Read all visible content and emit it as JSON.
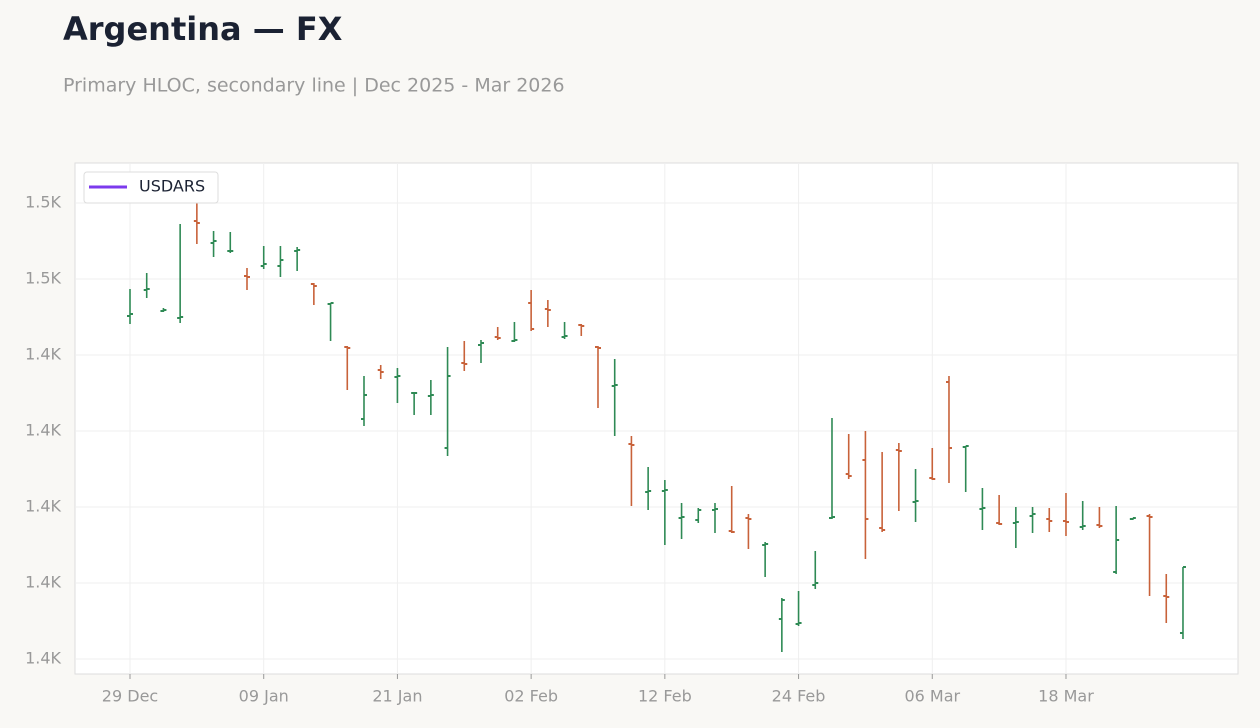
{
  "chart_data": {
    "type": "ohlc",
    "title": "Argentina — FX",
    "subtitle": "Primary HLOC, secondary line | Dec 2025 - Mar 2026",
    "categories": [
      "29 Dec",
      null,
      null,
      null,
      null,
      null,
      null,
      null,
      "09 Jan",
      null,
      null,
      null,
      null,
      null,
      null,
      null,
      "21 Jan",
      null,
      null,
      null,
      null,
      null,
      null,
      null,
      "02 Feb",
      null,
      null,
      null,
      null,
      null,
      null,
      null,
      "12 Feb",
      null,
      null,
      null,
      null,
      null,
      null,
      null,
      "24 Feb",
      null,
      null,
      null,
      null,
      null,
      null,
      null,
      "06 Mar",
      null,
      null,
      null,
      null,
      null,
      null,
      null,
      "18 Mar",
      null,
      null,
      null,
      null,
      null,
      null,
      null
    ],
    "open": [
      1451.45,
      1455.35,
      1452.2,
      1451.15,
      1465.7,
      1462.4,
      1461.2,
      1457.45,
      1458.95,
      1458.95,
      1461.2,
      1456.25,
      1453.25,
      1446.8,
      1436,
      1443.35,
      1442.3,
      1439.9,
      1439.45,
      1431.65,
      1444.4,
      1447.1,
      1448.3,
      1447.7,
      1453.4,
      1452.5,
      1448.3,
      1450.1,
      1446.8,
      1440.95,
      1432.25,
      1425.05,
      1425.2,
      1421.15,
      1420.85,
      1422.35,
      1419.2,
      1421.15,
      1417.1,
      1406,
      1405.25,
      1411.1,
      1421.15,
      1427.75,
      1429.85,
      1419.65,
      1431.35,
      1423.55,
      1427.15,
      1441.55,
      1431.8,
      1422.5,
      1420.4,
      1420.4,
      1421.45,
      1421,
      1420.7,
      1419.8,
      1420.1,
      1413.05,
      1421,
      1421.45,
      1409.45,
      1403.9
    ],
    "high": [
      1455.5,
      1457.9,
      1452.65,
      1465.25,
      1469.6,
      1464.2,
      1464.05,
      1458.65,
      1461.95,
      1461.95,
      1461.8,
      1456.4,
      1453.4,
      1446.95,
      1442.45,
      1444.1,
      1443.65,
      1440.05,
      1441.85,
      1446.8,
      1447.7,
      1447.85,
      1449.8,
      1450.55,
      1455.35,
      1453.85,
      1450.55,
      1450.25,
      1446.95,
      1445,
      1433.45,
      1428.8,
      1426.85,
      1423.4,
      1422.65,
      1423.4,
      1425.95,
      1421.75,
      1417.55,
      1409.15,
      1410.2,
      1416.2,
      1436.15,
      1433.75,
      1434.2,
      1431.05,
      1432.4,
      1428.5,
      1431.65,
      1442.45,
      1431.95,
      1425.65,
      1424.6,
      1422.8,
      1422.8,
      1422.65,
      1424.9,
      1423.7,
      1422.8,
      1422.95,
      1421.15,
      1421.75,
      1412.75,
      1413.8
    ],
    "low": [
      1450.25,
      1454.15,
      1452.05,
      1450.4,
      1462.25,
      1460.3,
      1460.9,
      1455.35,
      1458.5,
      1457.3,
      1458.2,
      1453.1,
      1447.7,
      1440.35,
      1434.95,
      1442,
      1438.4,
      1436.6,
      1436.6,
      1430.45,
      1443.2,
      1444.4,
      1447.85,
      1447.55,
      1449.2,
      1449.8,
      1448,
      1448.45,
      1437.65,
      1433.45,
      1422.95,
      1422.35,
      1417.1,
      1418,
      1420.4,
      1418.9,
      1418.9,
      1416.5,
      1412.3,
      1401.05,
      1404.95,
      1410.5,
      1421,
      1427,
      1415,
      1419.05,
      1422.2,
      1420.55,
      1426.85,
      1426.4,
      1425.05,
      1419.35,
      1420.1,
      1416.65,
      1418.9,
      1419.05,
      1418.45,
      1419.35,
      1419.65,
      1412.75,
      1420.85,
      1409.45,
      1405.4,
      1403
    ],
    "close": [
      1451.75,
      1455.5,
      1452.35,
      1451.3,
      1465.4,
      1462.7,
      1461.2,
      1457.3,
      1459.25,
      1459.85,
      1461.35,
      1455.95,
      1453.4,
      1446.65,
      1439.6,
      1443.05,
      1442.45,
      1439.9,
      1439.6,
      1442.45,
      1444.25,
      1447.4,
      1448.15,
      1447.85,
      1449.5,
      1452.35,
      1448.45,
      1449.95,
      1446.65,
      1441.1,
      1432.1,
      1425.2,
      1425.35,
      1421.3,
      1422.35,
      1422.5,
      1419.05,
      1421,
      1417.25,
      1408.85,
      1405.4,
      1411.4,
      1421.3,
      1427.45,
      1421,
      1419.35,
      1431.2,
      1423.7,
      1427,
      1431.65,
      1431.95,
      1422.65,
      1420.25,
      1420.55,
      1421.75,
      1420.7,
      1420.55,
      1419.95,
      1419.95,
      1417.85,
      1421.15,
      1421.3,
      1409.3,
      1413.8
    ],
    "up_color": "#2f8a55",
    "down_color": "#c8623a",
    "legend": [
      {
        "name": "USDARS",
        "color": "#7c3aed"
      }
    ],
    "legend_position": "upper left",
    "ylim": [
      1397.75,
      1474.4
    ],
    "yticks": [
      {
        "value": 1400,
        "label": "1.4K"
      },
      {
        "value": 1411.4,
        "label": "1.4K"
      },
      {
        "value": 1422.8,
        "label": "1.4K"
      },
      {
        "value": 1434.2,
        "label": "1.4K"
      },
      {
        "value": 1445.6,
        "label": "1.4K"
      },
      {
        "value": 1457,
        "label": "1.5K"
      },
      {
        "value": 1468.4,
        "label": "1.5K"
      }
    ],
    "grid": true
  }
}
